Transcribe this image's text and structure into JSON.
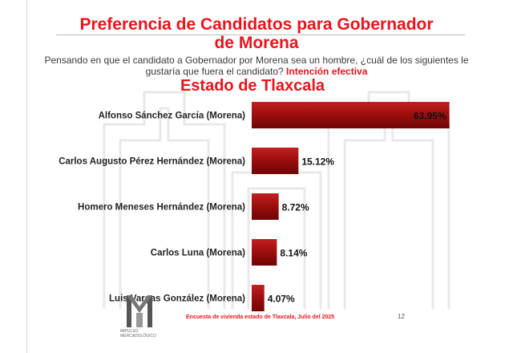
{
  "header": {
    "title_line1": "Preferencia de Candidatos para Gobernador",
    "title_line2": "de Morena",
    "question": "Pensando en que el candidato a Gobernador por Morena sea un hombre, ¿cuál de los siguientes le gustaría que fuera el candidato?",
    "question_highlight": "Intención efectiva",
    "subtitle": "Estado de  Tlaxcala"
  },
  "chart_data": {
    "type": "bar",
    "orientation": "horizontal",
    "categories": [
      "Alfonso Sánchez García (Morena)",
      "Carlos Augusto Pérez Hernández (Morena)",
      "Homero Meneses Hernández (Morena)",
      "Carlos Luna (Morena)",
      "Luis Vargas González (Morena)"
    ],
    "values": [
      63.95,
      15.12,
      8.72,
      8.14,
      4.07
    ],
    "value_labels": [
      "63.95%",
      "15.12%",
      "8.72%",
      "8.14%",
      "4.07%"
    ],
    "xlim": [
      0,
      70
    ],
    "bar_color": "#9b0d0d",
    "grid": false,
    "legend": "none"
  },
  "footer": {
    "source": "Encuesta de vivienda estado de Tlaxcala, Julio   del 2025",
    "page": "12",
    "logo_text_line1": "IMPULSO",
    "logo_text_line2": "MERCADOLÓGICO"
  },
  "colors": {
    "accent": "#e8141c",
    "bar": "#9b0d0d"
  }
}
